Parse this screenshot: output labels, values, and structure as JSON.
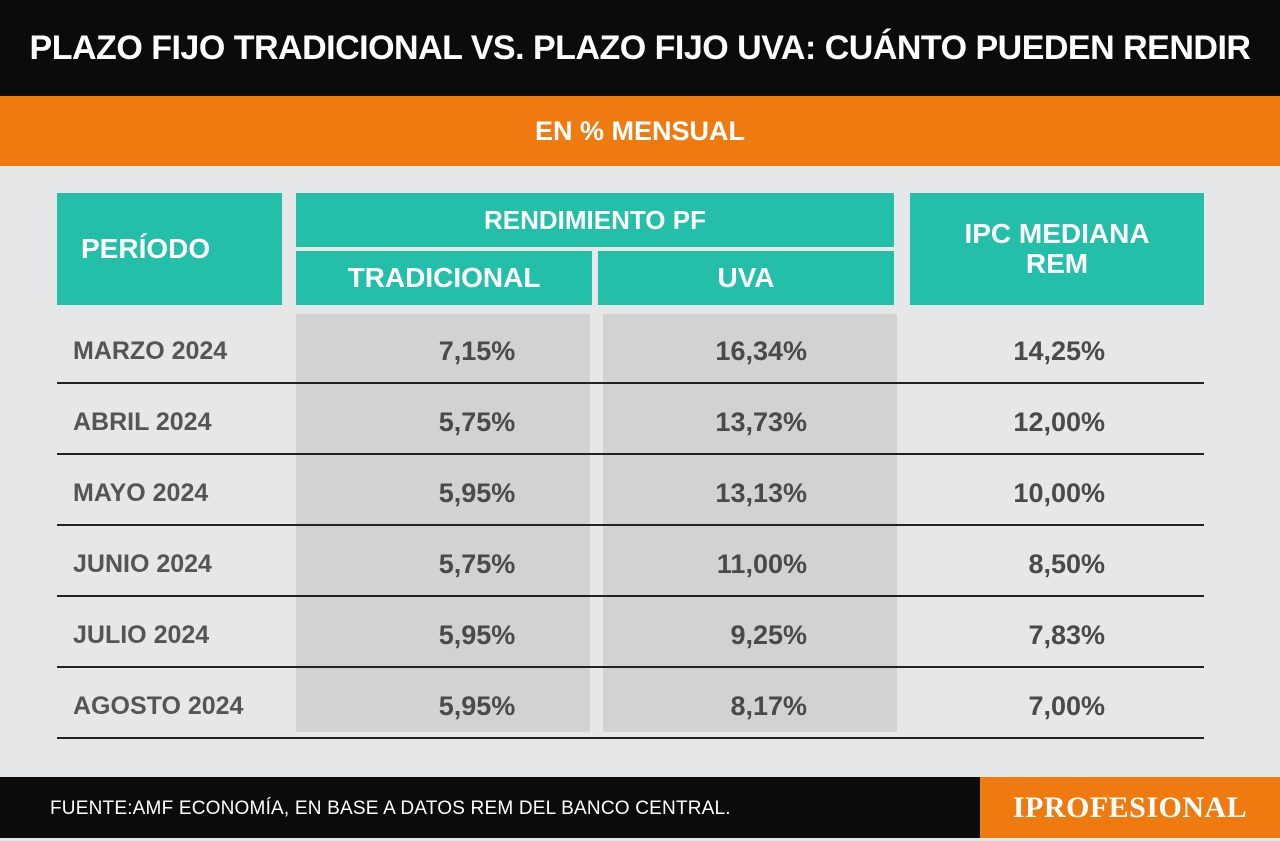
{
  "title": "PLAZO FIJO TRADICIONAL VS. PLAZO FIJO UVA: CUÁNTO PUEDEN RENDIR",
  "subtitle": "EN % MENSUAL",
  "colors": {
    "header": "#0b0b0b",
    "accent": "#ef7a10",
    "table_header": "#23bfa8",
    "shade": "#d1d2d3"
  },
  "chart_data": {
    "type": "table",
    "headers": {
      "periodo": "PERÍODO",
      "group": "RENDIMIENTO PF",
      "tradicional": "TRADICIONAL",
      "uva": "UVA",
      "ipc_line1": "IPC MEDIANA",
      "ipc_line2": "REM"
    },
    "rows": [
      {
        "periodo": "MARZO 2024",
        "tradicional": "7,15%",
        "uva": "16,34%",
        "ipc": "14,25%"
      },
      {
        "periodo": "ABRIL 2024",
        "tradicional": "5,75%",
        "uva": "13,73%",
        "ipc": "12,00%"
      },
      {
        "periodo": "MAYO 2024",
        "tradicional": "5,95%",
        "uva": "13,13%",
        "ipc": "10,00%"
      },
      {
        "periodo": "JUNIO 2024",
        "tradicional": "5,75%",
        "uva": "11,00%",
        "ipc": "8,50%"
      },
      {
        "periodo": "JULIO 2024",
        "tradicional": "5,95%",
        "uva": "9,25%",
        "ipc": "7,83%"
      },
      {
        "periodo": "AGOSTO 2024",
        "tradicional": "5,95%",
        "uva": "8,17%",
        "ipc": "7,00%"
      }
    ]
  },
  "footer": {
    "source": "FUENTE:AMF ECONOMÍA, EN BASE A DATOS REM DEL BANCO CENTRAL.",
    "brand": "IPROFESIONAL"
  }
}
